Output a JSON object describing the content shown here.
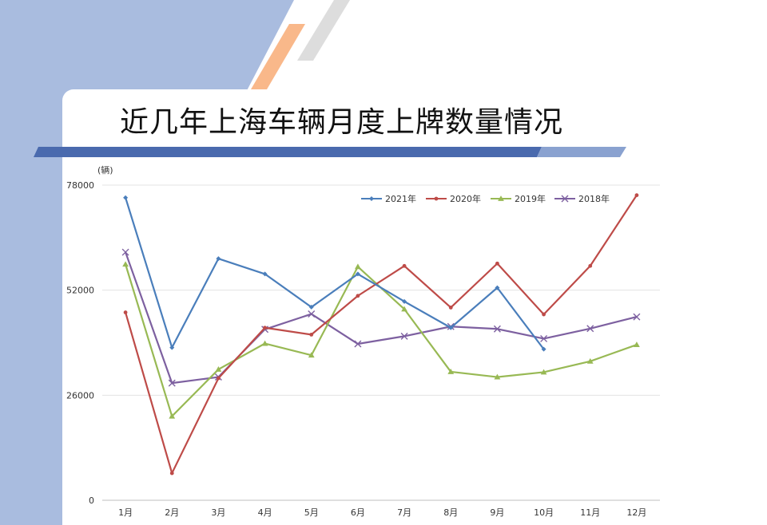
{
  "title": "近几年上海车辆月度上牌数量情况",
  "chart_data": {
    "type": "line",
    "title": "近几年上海车辆月度上牌数量情况",
    "unit_label": "(辆)",
    "categories": [
      "1月",
      "2月",
      "3月",
      "4月",
      "5月",
      "6月",
      "7月",
      "8月",
      "9月",
      "10月",
      "11月",
      "12月"
    ],
    "y_ticks": [
      "78000",
      "52000",
      "26000",
      "0"
    ],
    "ylim": [
      0,
      78000
    ],
    "grid": true,
    "legend_position": "top-right",
    "series": [
      {
        "name": "2021年",
        "color": "#4a7ebb",
        "marker": "diamond",
        "values": [
          74900,
          37800,
          59800,
          56000,
          47800,
          56000,
          49200,
          42700,
          52600,
          37400,
          null,
          null
        ]
      },
      {
        "name": "2020年",
        "color": "#be4b48",
        "marker": "circle",
        "values": [
          46500,
          6700,
          30200,
          42700,
          41000,
          50600,
          58000,
          47700,
          58600,
          46000,
          58000,
          75500
        ]
      },
      {
        "name": "2019年",
        "color": "#98b954",
        "marker": "triangle",
        "values": [
          58400,
          20800,
          32400,
          38800,
          35900,
          57800,
          47300,
          31800,
          30500,
          31700,
          34400,
          38500
        ]
      },
      {
        "name": "2018年",
        "color": "#7d60a0",
        "marker": "x",
        "values": [
          61400,
          29000,
          30500,
          42300,
          46100,
          38700,
          40600,
          43000,
          42400,
          40000,
          42500,
          45400
        ]
      }
    ]
  }
}
